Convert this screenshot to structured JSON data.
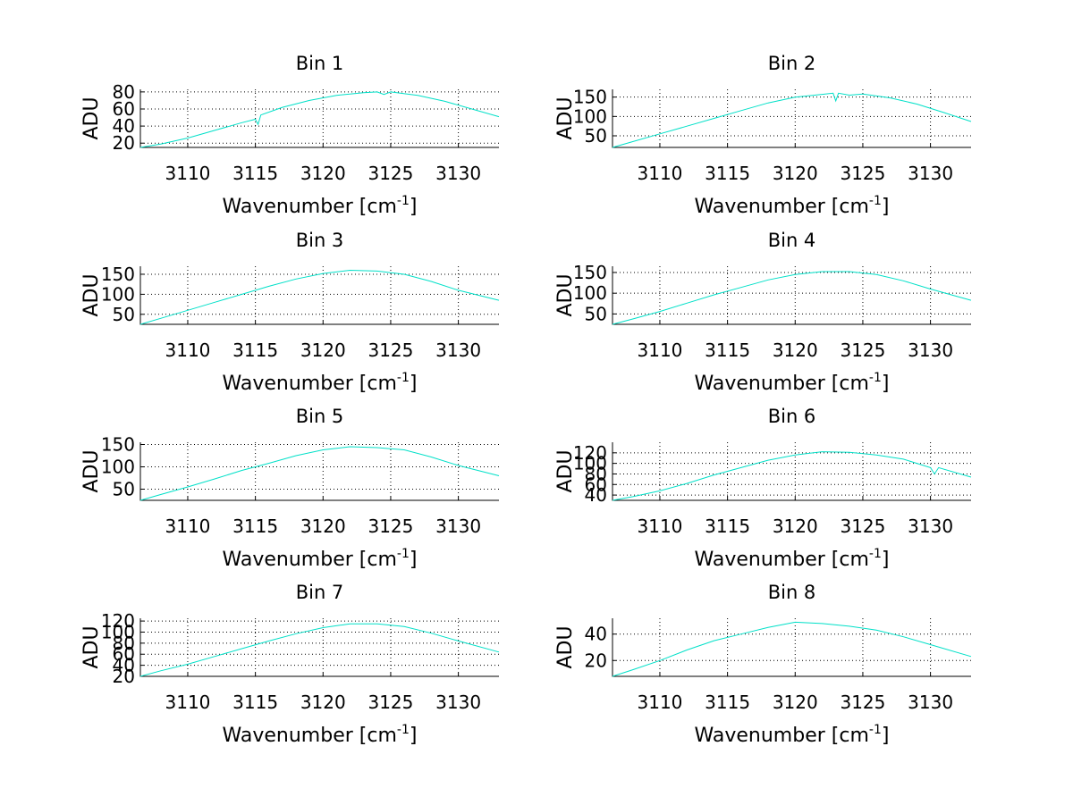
{
  "chart_data": [
    {
      "type": "line",
      "title": "Bin 1",
      "xlabel": "Wavenumber [cm",
      "xlabel_sup": "-1",
      "xlabel_suffix": "]",
      "ylabel": "ADU",
      "xlim": [
        3106.5,
        3133
      ],
      "ylim": [
        15,
        83
      ],
      "xticks": [
        "3110",
        "3115",
        "3120",
        "3125",
        "3130"
      ],
      "yticks": [
        "20",
        "40",
        "60",
        "80"
      ],
      "series": [
        {
          "name": "Bin 1",
          "color": "#00e0c8",
          "x": [
            3106.5,
            3108,
            3110,
            3112,
            3114,
            3115,
            3115.2,
            3115.4,
            3117,
            3119,
            3121,
            3123,
            3124,
            3124.5,
            3125,
            3127,
            3129,
            3131,
            3133
          ],
          "y": [
            15,
            19,
            26,
            35,
            44,
            48,
            42,
            53,
            62,
            70,
            76,
            79,
            80,
            77,
            80,
            76,
            69,
            60,
            51
          ]
        }
      ]
    },
    {
      "type": "line",
      "title": "Bin 2",
      "xlabel": "Wavenumber [cm",
      "xlabel_sup": "-1",
      "xlabel_suffix": "]",
      "ylabel": "ADU",
      "xlim": [
        3106.5,
        3133
      ],
      "ylim": [
        20,
        170
      ],
      "xticks": [
        "3110",
        "3115",
        "3120",
        "3125",
        "3130"
      ],
      "yticks": [
        "50",
        "100",
        "150"
      ],
      "series": [
        {
          "name": "Bin 2",
          "color": "#00e0c8",
          "x": [
            3106.5,
            3108,
            3110,
            3112,
            3114,
            3116,
            3118,
            3120,
            3122,
            3122.8,
            3123,
            3123.2,
            3124,
            3125,
            3127,
            3129,
            3131,
            3133
          ],
          "y": [
            20,
            35,
            55,
            75,
            95,
            115,
            135,
            150,
            157,
            160,
            140,
            160,
            155,
            158,
            148,
            132,
            110,
            87
          ]
        }
      ]
    },
    {
      "type": "line",
      "title": "Bin 3",
      "xlabel": "Wavenumber [cm",
      "xlabel_sup": "-1",
      "xlabel_suffix": "]",
      "ylabel": "ADU",
      "xlim": [
        3106.5,
        3133
      ],
      "ylim": [
        25,
        170
      ],
      "xticks": [
        "3110",
        "3115",
        "3120",
        "3125",
        "3130"
      ],
      "yticks": [
        "50",
        "100",
        "150"
      ],
      "series": [
        {
          "name": "Bin 3",
          "color": "#00e0c8",
          "x": [
            3106.5,
            3108,
            3110,
            3112,
            3114,
            3116,
            3118,
            3120,
            3122,
            3124,
            3126,
            3128,
            3130,
            3133
          ],
          "y": [
            25,
            40,
            60,
            80,
            100,
            120,
            138,
            152,
            160,
            158,
            150,
            132,
            110,
            85
          ]
        }
      ]
    },
    {
      "type": "line",
      "title": "Bin 4",
      "xlabel": "Wavenumber [cm",
      "xlabel_sup": "-1",
      "xlabel_suffix": "]",
      "ylabel": "ADU",
      "xlim": [
        3106.5,
        3133
      ],
      "ylim": [
        25,
        165
      ],
      "xticks": [
        "3110",
        "3115",
        "3120",
        "3125",
        "3130"
      ],
      "yticks": [
        "50",
        "100",
        "150"
      ],
      "series": [
        {
          "name": "Bin 4",
          "color": "#00e0c8",
          "x": [
            3106.5,
            3108,
            3110,
            3112,
            3114,
            3116,
            3118,
            3120,
            3122,
            3124,
            3126,
            3128,
            3130,
            3133
          ],
          "y": [
            25,
            38,
            56,
            76,
            96,
            114,
            132,
            145,
            152,
            152,
            145,
            130,
            110,
            83
          ]
        }
      ]
    },
    {
      "type": "line",
      "title": "Bin 5",
      "xlabel": "Wavenumber [cm",
      "xlabel_sup": "-1",
      "xlabel_suffix": "]",
      "ylabel": "ADU",
      "xlim": [
        3106.5,
        3133
      ],
      "ylim": [
        25,
        155
      ],
      "xticks": [
        "3110",
        "3115",
        "3120",
        "3125",
        "3130"
      ],
      "yticks": [
        "50",
        "100",
        "150"
      ],
      "series": [
        {
          "name": "Bin 5",
          "color": "#00e0c8",
          "x": [
            3106.5,
            3108,
            3110,
            3112,
            3114,
            3116,
            3118,
            3120,
            3122,
            3124,
            3126,
            3128,
            3130,
            3133
          ],
          "y": [
            25,
            38,
            55,
            73,
            92,
            108,
            125,
            138,
            145,
            143,
            138,
            122,
            103,
            80
          ]
        }
      ]
    },
    {
      "type": "line",
      "title": "Bin 6",
      "xlabel": "Wavenumber [cm",
      "xlabel_sup": "-1",
      "xlabel_suffix": "]",
      "ylabel": "ADU",
      "xlim": [
        3106.5,
        3133
      ],
      "ylim": [
        30,
        140
      ],
      "xticks": [
        "3110",
        "3115",
        "3120",
        "3125",
        "3130"
      ],
      "yticks": [
        "40",
        "60",
        "80",
        "100",
        "120"
      ],
      "series": [
        {
          "name": "Bin 6",
          "color": "#00e0c8",
          "x": [
            3106.5,
            3108,
            3110,
            3112,
            3114,
            3116,
            3118,
            3120,
            3122,
            3124,
            3126,
            3128,
            3130,
            3130.3,
            3130.6,
            3133
          ],
          "y": [
            30,
            37,
            48,
            62,
            78,
            92,
            106,
            116,
            122,
            121,
            116,
            108,
            92,
            80,
            92,
            74
          ]
        }
      ]
    },
    {
      "type": "line",
      "title": "Bin 7",
      "xlabel": "Wavenumber [cm",
      "xlabel_sup": "-1",
      "xlabel_suffix": "]",
      "ylabel": "ADU",
      "xlim": [
        3106.5,
        3133
      ],
      "ylim": [
        20,
        125
      ],
      "xticks": [
        "3110",
        "3115",
        "3120",
        "3125",
        "3130"
      ],
      "yticks": [
        "20",
        "40",
        "60",
        "80",
        "100",
        "120"
      ],
      "series": [
        {
          "name": "Bin 7",
          "color": "#00e0c8",
          "x": [
            3106.5,
            3108,
            3110,
            3112,
            3114,
            3116,
            3118,
            3120,
            3122,
            3124,
            3126,
            3128,
            3130,
            3133
          ],
          "y": [
            20,
            30,
            42,
            56,
            70,
            84,
            97,
            108,
            115,
            115,
            110,
            98,
            84,
            64
          ]
        }
      ]
    },
    {
      "type": "line",
      "title": "Bin 8",
      "xlabel": "Wavenumber [cm",
      "xlabel_sup": "-1",
      "xlabel_suffix": "]",
      "ylabel": "ADU",
      "xlim": [
        3106.5,
        3133
      ],
      "ylim": [
        8,
        52
      ],
      "xticks": [
        "3110",
        "3115",
        "3120",
        "3125",
        "3130"
      ],
      "yticks": [
        "20",
        "40"
      ],
      "series": [
        {
          "name": "Bin 8",
          "color": "#00e0c8",
          "x": [
            3106.5,
            3108,
            3110,
            3112,
            3114,
            3116,
            3118,
            3120,
            3122,
            3124,
            3126,
            3128,
            3130,
            3133
          ],
          "y": [
            8,
            13,
            20,
            28,
            35,
            40,
            45,
            49,
            48,
            46,
            43,
            38,
            32,
            23
          ]
        }
      ]
    }
  ]
}
